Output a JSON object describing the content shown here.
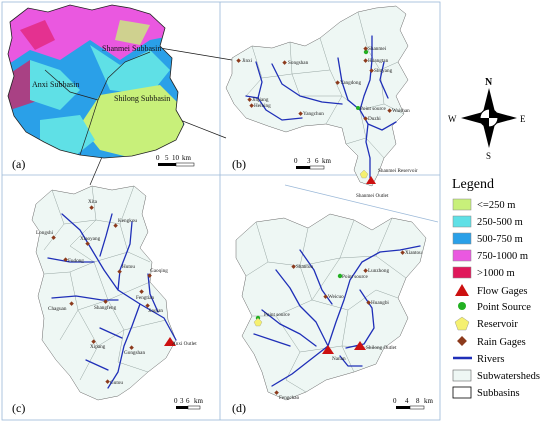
{
  "panels": {
    "a": {
      "letter": "(a)",
      "labels": [
        "Shanmei Subbasin",
        "Anxi Subbasin",
        "Shilong Subbasin"
      ],
      "scale": [
        "0",
        "5",
        "10",
        "km"
      ]
    },
    "b": {
      "letter": "(b)",
      "gages": [
        "Jinxi",
        "Songshan",
        "Shanmei",
        "Huangtan",
        "Yangdong",
        "Point source",
        "Jinjiang",
        "Shuyang",
        "Yangchun",
        "Waishan",
        "Duzhi",
        "Heibing"
      ],
      "outlet_label": "Shanmei Outlet",
      "reservoir_label": "Shanmei Reservoir",
      "scale": [
        "0",
        "3",
        "6",
        "km"
      ]
    },
    "c": {
      "letter": "(c)",
      "gages": [
        "Xita",
        "Kengkou",
        "Longshi",
        "Xiaoyang",
        "Fudong",
        "Hutou",
        "Gaoqing",
        "Fengtian",
        "Chaguan",
        "Shangfeng",
        "Jinqian",
        "Xipang",
        "Gutou",
        "Gongshan",
        "Anxi Outlet"
      ],
      "scale": [
        "0",
        "3",
        "6",
        "km"
      ]
    },
    "d": {
      "letter": "(d)",
      "gages": [
        "Xiantou",
        "Point source",
        "Shantou",
        "Lunzhong",
        "Weicuo",
        "Huangbi",
        "Point source",
        "Nanan",
        "Shilong Outlet",
        "Fengchao"
      ],
      "scale": [
        "0",
        "4",
        "8",
        "km"
      ]
    }
  },
  "north_arrow": {
    "n": "N",
    "s": "S",
    "e": "E",
    "w": "W"
  },
  "legend": {
    "title": "Legend",
    "items": [
      {
        "label": "<=250 m",
        "color": "#c8f07a"
      },
      {
        "label": "250-500 m",
        "color": "#5fe0e6"
      },
      {
        "label": "500-750 m",
        "color": "#2aa0e8"
      },
      {
        "label": "750-1000 m",
        "color": "#ea58e0"
      },
      {
        "label": ">1000 m",
        "color": "#e0185a"
      },
      {
        "label": "Flow Gages",
        "color": "#cc1010"
      },
      {
        "label": "Point Source",
        "color": "#22b022"
      },
      {
        "label": "Reservoir",
        "color": "#f5f070"
      },
      {
        "label": "Rain Gages",
        "color": "#8c3a1c"
      },
      {
        "label": "Rivers",
        "color": "#1f2fb8"
      },
      {
        "label": "Subwatersheds",
        "color": "#eef7f4"
      },
      {
        "label": "Subbasins",
        "color": "#ffffff"
      }
    ]
  }
}
